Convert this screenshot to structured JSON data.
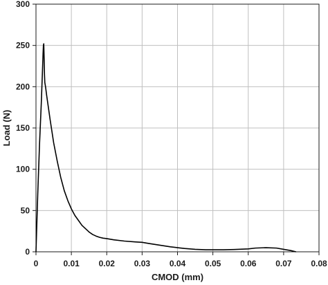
{
  "chart_data": {
    "type": "line",
    "title": "",
    "xlabel": "CMOD (mm)",
    "ylabel": "Load (N)",
    "xlim": [
      0,
      0.08
    ],
    "ylim": [
      0,
      300
    ],
    "x_ticks": [
      "0",
      "0.01",
      "0.02",
      "0.03",
      "0.04",
      "0.05",
      "0.06",
      "0.07",
      "0.08"
    ],
    "y_ticks": [
      "0",
      "50",
      "100",
      "150",
      "200",
      "250",
      "300"
    ],
    "grid": true,
    "legend": "none",
    "line_color": "#000000",
    "grid_color": "#bfbfbf",
    "series": [
      {
        "x": [
          0,
          0.0005,
          0.001,
          0.0015,
          0.0018,
          0.002,
          0.0021,
          0.0022,
          0.0023,
          0.0024,
          0.0025,
          0.0027,
          0.003,
          0.0035,
          0.004,
          0.005,
          0.006,
          0.007,
          0.008,
          0.009,
          0.01,
          0.011,
          0.012,
          0.013,
          0.014,
          0.015,
          0.016,
          0.017,
          0.018,
          0.019,
          0.02,
          0.022,
          0.025,
          0.028,
          0.03,
          0.032,
          0.035,
          0.038,
          0.04,
          0.042,
          0.045,
          0.048,
          0.05,
          0.053,
          0.056,
          0.06,
          0.062,
          0.065,
          0.068,
          0.07,
          0.072,
          0.0735
        ],
        "y": [
          0,
          70,
          130,
          180,
          215,
          240,
          250,
          252,
          235,
          215,
          205,
          200,
          190,
          175,
          160,
          132,
          110,
          90,
          74,
          62,
          52,
          44,
          38,
          32,
          28,
          24,
          21,
          19,
          17.5,
          16.5,
          16,
          14.5,
          13,
          12,
          11.5,
          10,
          8,
          6,
          5,
          4,
          3,
          2.5,
          2.5,
          2.5,
          2.8,
          3.5,
          4.5,
          5,
          4.5,
          3,
          1.5,
          0
        ]
      }
    ]
  }
}
